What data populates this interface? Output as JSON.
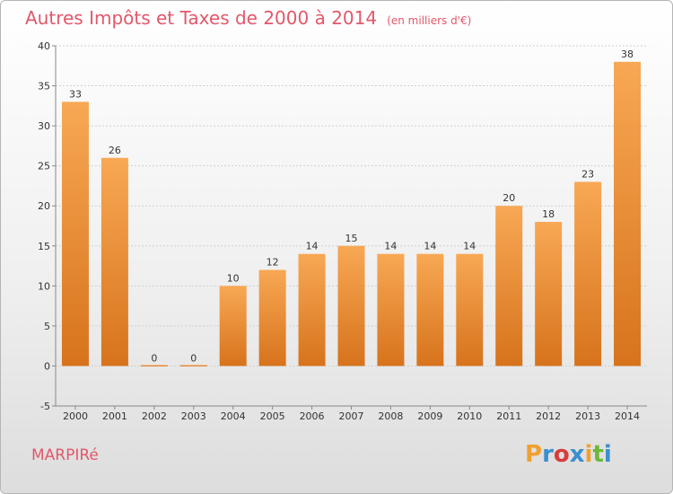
{
  "header": {
    "title": "Autres Impôts et Taxes de 2000 à 2014",
    "subtitle": "(en milliers d'€)"
  },
  "footer": {
    "commune": "MARPIRé",
    "logo": "Proxiti"
  },
  "colors": {
    "title": "#e2586a",
    "bar_light": "#f8a854",
    "bar_dark": "#d7731c",
    "logo": [
      "#f0a030",
      "#3a8fd0",
      "#d83c3c",
      "#3a8fd0",
      "#f0a030",
      "#6bb83a",
      "#3a8fd0"
    ]
  },
  "chart_data": {
    "type": "bar",
    "categories": [
      "2000",
      "2001",
      "2002",
      "2003",
      "2004",
      "2005",
      "2006",
      "2007",
      "2008",
      "2009",
      "2010",
      "2011",
      "2012",
      "2013",
      "2014"
    ],
    "values": [
      33,
      26,
      0,
      0,
      10,
      12,
      14,
      15,
      14,
      14,
      14,
      20,
      18,
      23,
      38
    ],
    "data_labels": [
      "33",
      "26",
      "0",
      "0",
      "10",
      "12",
      "14",
      "15",
      "14",
      "14",
      "14",
      "20",
      "18",
      "23",
      "38"
    ],
    "ylim": [
      -5,
      40
    ],
    "yticks": [
      -5,
      0,
      5,
      10,
      15,
      20,
      25,
      30,
      35,
      40
    ],
    "ytick_labels": [
      "-5",
      "0",
      "5",
      "10",
      "15",
      "20",
      "25",
      "30",
      "35",
      "40"
    ],
    "grid": true
  }
}
